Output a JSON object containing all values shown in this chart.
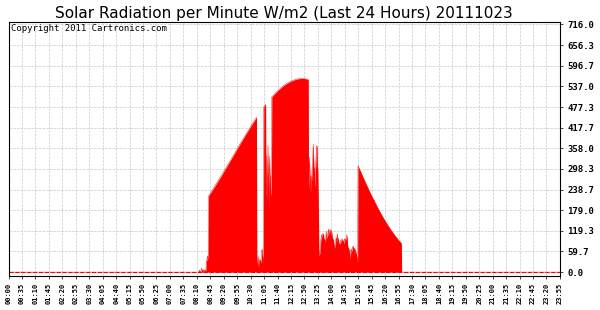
{
  "title": "Solar Radiation per Minute W/m2 (Last 24 Hours) 20111023",
  "copyright_text": "Copyright 2011 Cartronics.com",
  "y_ticks": [
    0.0,
    59.7,
    119.3,
    179.0,
    238.7,
    298.3,
    358.0,
    417.7,
    477.3,
    537.0,
    596.7,
    656.3,
    716.0
  ],
  "y_max": 716.0,
  "y_min": 0.0,
  "background_color": "#ffffff",
  "fill_color": "#ff0000",
  "line_color": "#ff0000",
  "grid_color": "#bbbbbb",
  "dashed_line_color": "#ff0000",
  "title_fontsize": 11,
  "copyright_fontsize": 6.5,
  "x_labels": [
    "00:00",
    "00:35",
    "01:10",
    "01:45",
    "02:20",
    "02:55",
    "03:30",
    "04:05",
    "04:40",
    "05:15",
    "05:50",
    "06:25",
    "07:00",
    "07:35",
    "08:10",
    "08:45",
    "09:20",
    "09:55",
    "10:30",
    "11:05",
    "11:40",
    "12:15",
    "12:50",
    "13:25",
    "14:00",
    "14:35",
    "15:10",
    "15:45",
    "16:20",
    "16:55",
    "17:30",
    "18:05",
    "18:40",
    "19:15",
    "19:50",
    "20:25",
    "21:00",
    "21:35",
    "22:10",
    "22:45",
    "23:20",
    "23:55"
  ]
}
